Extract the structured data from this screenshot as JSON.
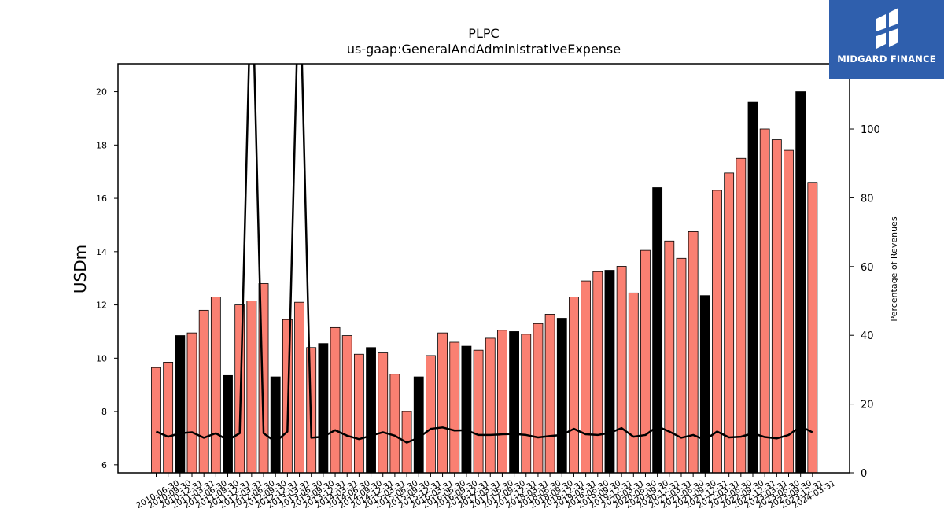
{
  "brand": {
    "logo_text": "MIDGARD FINANCE",
    "logo_color": "#2f5fad"
  },
  "chart_data": {
    "type": "bar",
    "title": "PLPC",
    "subtitle": "us-gaap:GeneralAndAdministrativeExpense",
    "ylabel": "USDm",
    "y2label": "Percentage of Revenues",
    "ylim": [
      5.7,
      21.05
    ],
    "y2lim": [
      0,
      119
    ],
    "yticks": [
      6,
      8,
      10,
      12,
      14,
      16,
      18,
      20
    ],
    "y2ticks": [
      0,
      20,
      40,
      60,
      80,
      100
    ],
    "bar_color": "#fa8072",
    "highlight_color": "#000000",
    "line_color": "#000000",
    "categories": [
      "2010-06-30",
      "2010-09-30",
      "2010-12-31",
      "2011-03-31",
      "2011-06-30",
      "2011-09-30",
      "2011-12-31",
      "2012-03-31",
      "2012-06-30",
      "2012-09-30",
      "2012-12-31",
      "2013-03-31",
      "2013-06-30",
      "2013-09-30",
      "2013-12-31",
      "2014-03-31",
      "2014-06-30",
      "2014-09-30",
      "2014-12-31",
      "2015-03-31",
      "2015-06-30",
      "2015-09-30",
      "2015-12-31",
      "2016-03-31",
      "2016-06-30",
      "2016-09-30",
      "2016-12-31",
      "2017-03-31",
      "2017-06-30",
      "2017-09-30",
      "2017-12-31",
      "2018-03-31",
      "2018-06-30",
      "2018-09-30",
      "2018-12-31",
      "2019-03-31",
      "2019-06-30",
      "2019-09-30",
      "2019-12-31",
      "2020-03-31",
      "2020-06-30",
      "2020-09-30",
      "2020-12-31",
      "2021-03-31",
      "2021-06-30",
      "2021-09-30",
      "2021-12-31",
      "2022-03-31",
      "2022-06-30",
      "2022-09-30",
      "2022-12-31",
      "2023-03-31",
      "2023-06-30",
      "2023-09-30",
      "2023-12-31",
      "2024-03-31"
    ],
    "tick_labels": [
      "2010-06-30",
      "2010-09-30",
      "2010-12-31",
      "2011-03-31",
      "2011-06-30",
      "2011-09-30",
      "2011-12-31",
      "2012-03-31",
      "2012-06-30",
      "2012-09-30",
      "2012-12-31",
      "2013-03-31",
      "2013-06-30",
      "2013-09-30",
      "2013-12-31",
      "2014-03-31",
      "2014-06-30",
      "2014-09-30",
      "2014-12-31",
      "2015-03-31",
      "2015-06-30",
      "2015-09-30",
      "2015-12-31",
      "2016-03-31",
      "2016-06-30",
      "2016-09-30",
      "2016-12-31",
      "2017-03-31",
      "2017-06-30",
      "2017-09-30",
      "2017-12-31",
      "2018-03-31",
      "2018-06-30",
      "2018-09-30",
      "2018-12-31",
      "2019-03-31",
      "2019-06-30",
      "2019-09-30",
      "2019-12-31",
      "2020-03-31",
      "2020-06-30",
      "2020-09-30",
      "2020-12-31",
      "2021-03-31",
      "2021-06-30",
      "2021-09-30",
      "2021-12-31",
      "2022-03-31",
      "2022-06-30",
      "2022-09-30",
      "2022-12-31",
      "2023-03-31",
      "2023-06-30",
      "2023-09-30",
      "2023-12-31",
      "2024-03-31"
    ],
    "series": [
      {
        "values": [
          9.65,
          9.85,
          10.85,
          10.95,
          11.8,
          12.3,
          9.35,
          12.0,
          12.15,
          12.8,
          9.3,
          11.45,
          12.1,
          10.4,
          10.55,
          11.15,
          10.85,
          10.15,
          10.4,
          10.2,
          9.4,
          8.0,
          9.3,
          10.1,
          10.95,
          10.6,
          10.45,
          10.3,
          10.75,
          11.05,
          11.0,
          10.9,
          11.3,
          11.65,
          11.5,
          12.3,
          12.9,
          13.25,
          13.3,
          13.45,
          12.45,
          14.05,
          16.4,
          14.4,
          13.75,
          14.75,
          12.35,
          16.3,
          16.95,
          17.5,
          19.6,
          18.6,
          18.2,
          17.8,
          20.0,
          16.6
        ],
        "highlight": [
          false,
          false,
          true,
          false,
          false,
          false,
          true,
          false,
          false,
          false,
          true,
          false,
          false,
          false,
          true,
          false,
          false,
          false,
          true,
          false,
          false,
          false,
          true,
          false,
          false,
          false,
          true,
          false,
          false,
          false,
          true,
          false,
          false,
          false,
          true,
          false,
          false,
          false,
          true,
          false,
          false,
          false,
          true,
          false,
          false,
          false,
          true,
          false,
          false,
          false,
          true,
          false,
          false,
          false,
          true,
          false
        ]
      },
      {
        "axis": "right",
        "type": "line",
        "values": [
          12.0,
          10.5,
          11.5,
          11.8,
          10.2,
          11.5,
          9.5,
          11.5,
          150,
          11.5,
          9.0,
          12.0,
          150,
          10.2,
          10.5,
          12.4,
          10.8,
          9.8,
          10.8,
          11.8,
          10.8,
          8.8,
          10.2,
          12.8,
          13.2,
          12.3,
          12.4,
          11.0,
          11.0,
          11.2,
          11.3,
          11.0,
          10.3,
          10.7,
          11.0,
          12.8,
          11.2,
          11.0,
          11.6,
          13.0,
          10.5,
          11.0,
          13.5,
          12.0,
          10.2,
          11.0,
          9.6,
          12.0,
          10.3,
          10.5,
          11.5,
          10.4,
          10.0,
          11.0,
          13.5,
          11.8
        ]
      }
    ]
  }
}
